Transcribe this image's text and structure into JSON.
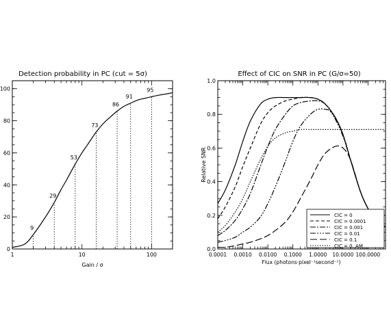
{
  "chart_data": [
    {
      "type": "line",
      "title": "Detection probability in PC (cut = 5σ)",
      "xlabel": "Gain / σ",
      "ylabel": "",
      "xscale": "log",
      "xlim": [
        1,
        200
      ],
      "ylim": [
        0,
        105
      ],
      "xticks": [
        1,
        10,
        100
      ],
      "xtick_labels": [
        "1",
        "10",
        "100"
      ],
      "yticks": [
        0,
        20,
        40,
        60,
        80,
        100
      ],
      "ytick_labels": [
        "0",
        "20",
        "40",
        "60",
        "80",
        "100"
      ],
      "grid": false,
      "series": [
        {
          "x": [
            1,
            1.5,
            2,
            3,
            4,
            5,
            6,
            8,
            10,
            12,
            16,
            20,
            25,
            32,
            40,
            50,
            64,
            80,
            100,
            128,
            160,
            200
          ],
          "values": [
            1,
            3,
            9,
            20,
            29,
            37,
            43,
            53,
            60,
            65,
            73,
            78,
            82,
            86,
            89,
            91,
            93,
            94,
            95,
            96,
            96.7,
            97.5
          ]
        }
      ],
      "annotations": [
        {
          "x": 2,
          "y": 9,
          "label": "9"
        },
        {
          "x": 4,
          "y": 29,
          "label": "29"
        },
        {
          "x": 8,
          "y": 53,
          "label": "53"
        },
        {
          "x": 16,
          "y": 73,
          "label": "73"
        },
        {
          "x": 32,
          "y": 86,
          "label": "86"
        },
        {
          "x": 50,
          "y": 91,
          "label": "91"
        },
        {
          "x": 100,
          "y": 95,
          "label": "95"
        }
      ]
    },
    {
      "type": "line",
      "title": "Effect of CIC on SNR in PC (G/σ=50)",
      "xlabel": "Flux (photons·pixel⁻¹second⁻¹)",
      "ylabel": "Relative SNR",
      "xscale": "log",
      "xlim": [
        0.0001,
        500
      ],
      "ylim": [
        0,
        1.0
      ],
      "xticks": [
        0.0001,
        0.001,
        0.01,
        0.1,
        1,
        10,
        100
      ],
      "xtick_labels": [
        "0.0001",
        "0.0010",
        "0.0100",
        "0.1000",
        "1.0000",
        "10.0000",
        "100.0000"
      ],
      "yticks": [
        0,
        0.2,
        0.4,
        0.6,
        0.8,
        1.0
      ],
      "ytick_labels": [
        "0.0",
        "0.2",
        "0.4",
        "0.6",
        "0.8",
        "1.0"
      ],
      "grid": false,
      "legend_position": "bottom-right",
      "series": [
        {
          "name": "CIC = 0",
          "dash": "",
          "x": [
            0.0001,
            0.0002,
            0.0005,
            0.001,
            0.002,
            0.005,
            0.01,
            0.02,
            0.05,
            0.1,
            0.2,
            0.5,
            1,
            2,
            5,
            10,
            20,
            50,
            100,
            200,
            500
          ],
          "values": [
            0.27,
            0.35,
            0.5,
            0.64,
            0.76,
            0.86,
            0.89,
            0.9,
            0.9,
            0.9,
            0.9,
            0.9,
            0.89,
            0.86,
            0.78,
            0.68,
            0.53,
            0.34,
            0.24,
            0.17,
            0.13
          ]
        },
        {
          "name": "CIC = 0.0001",
          "dash": "5 3",
          "x": [
            0.0001,
            0.0002,
            0.0005,
            0.001,
            0.002,
            0.005,
            0.01,
            0.02,
            0.05,
            0.1,
            0.2,
            0.5,
            1,
            2,
            5,
            10,
            20,
            50,
            100,
            200,
            500
          ],
          "values": [
            0.18,
            0.25,
            0.37,
            0.49,
            0.6,
            0.74,
            0.81,
            0.85,
            0.88,
            0.89,
            0.9,
            0.9,
            0.89,
            0.86,
            0.78,
            0.68,
            0.53,
            0.34,
            0.24,
            0.17,
            0.13
          ]
        },
        {
          "name": "CIC = 0.001",
          "dash": "8 2 2 2",
          "x": [
            0.0001,
            0.0002,
            0.0005,
            0.001,
            0.002,
            0.005,
            0.01,
            0.02,
            0.05,
            0.1,
            0.2,
            0.5,
            1,
            2,
            5,
            10,
            20,
            50,
            100,
            200,
            500
          ],
          "values": [
            0.08,
            0.11,
            0.17,
            0.24,
            0.33,
            0.49,
            0.61,
            0.71,
            0.8,
            0.85,
            0.87,
            0.88,
            0.88,
            0.86,
            0.78,
            0.68,
            0.53,
            0.34,
            0.24,
            0.17,
            0.13
          ]
        },
        {
          "name": "CIC = 0.01",
          "dash": "8 2 2 2 2 2 2 2",
          "x": [
            0.0001,
            0.0002,
            0.0005,
            0.001,
            0.002,
            0.005,
            0.01,
            0.02,
            0.05,
            0.1,
            0.2,
            0.5,
            1,
            2,
            3,
            5,
            10,
            20,
            50,
            100,
            200,
            500
          ],
          "values": [
            0.04,
            0.05,
            0.07,
            0.1,
            0.13,
            0.19,
            0.27,
            0.37,
            0.52,
            0.64,
            0.73,
            0.8,
            0.83,
            0.83,
            0.82,
            0.77,
            0.67,
            0.53,
            0.34,
            0.24,
            0.17,
            0.13
          ]
        },
        {
          "name": "CIC = 0.1",
          "dash": "10 4",
          "x": [
            0.0001,
            0.0002,
            0.0005,
            0.001,
            0.002,
            0.005,
            0.01,
            0.02,
            0.05,
            0.1,
            0.2,
            0.5,
            1,
            2,
            5,
            10,
            20,
            50,
            100,
            200,
            500
          ],
          "values": [
            0.01,
            0.01,
            0.02,
            0.03,
            0.04,
            0.06,
            0.08,
            0.11,
            0.16,
            0.22,
            0.3,
            0.41,
            0.5,
            0.57,
            0.61,
            0.6,
            0.53,
            0.34,
            0.24,
            0.17,
            0.13
          ]
        },
        {
          "name": "CIC = 0, AM",
          "dash": "1.5 2",
          "x": [
            0.0001,
            0.0002,
            0.0005,
            0.001,
            0.002,
            0.005,
            0.01,
            0.02,
            0.05,
            0.1,
            0.2,
            0.5,
            1,
            5,
            20,
            100,
            500
          ],
          "values": [
            0.1,
            0.14,
            0.22,
            0.3,
            0.4,
            0.53,
            0.61,
            0.66,
            0.69,
            0.7,
            0.71,
            0.71,
            0.71,
            0.71,
            0.71,
            0.71,
            0.71
          ]
        }
      ]
    }
  ]
}
